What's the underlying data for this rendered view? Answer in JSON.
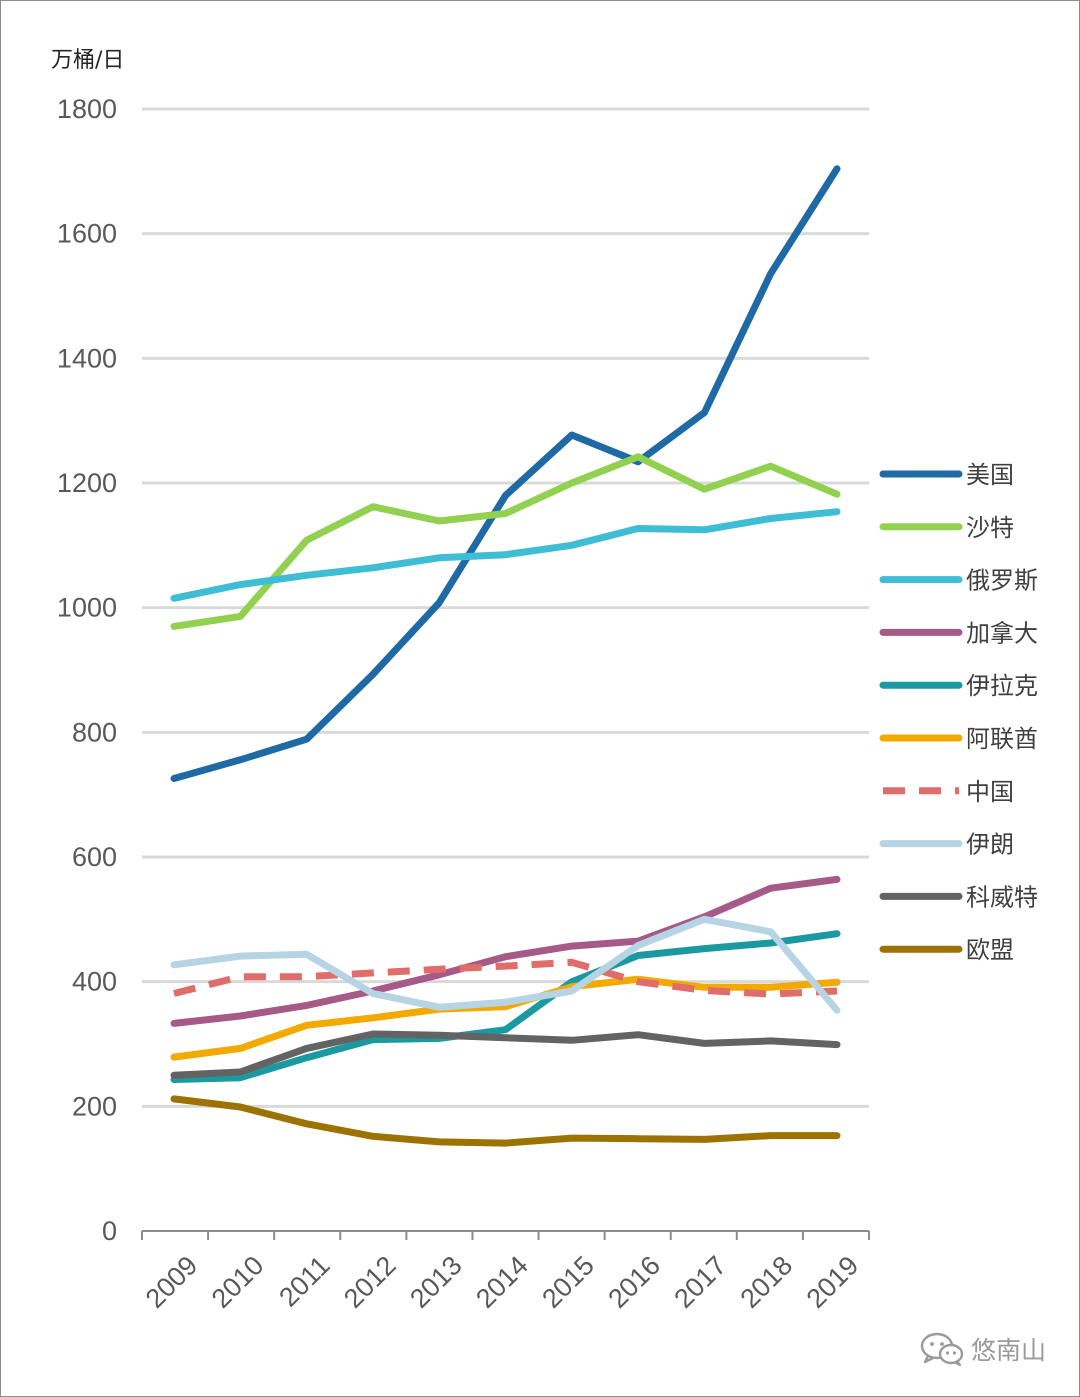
{
  "chart_data": {
    "type": "line",
    "ylabel": "万桶/日",
    "ylim": [
      0,
      1800
    ],
    "yticks": [
      0,
      200,
      400,
      600,
      800,
      1000,
      1200,
      1400,
      1600,
      1800
    ],
    "x": [
      "2009",
      "2010",
      "2011",
      "2012",
      "2013",
      "2014",
      "2015",
      "2016",
      "2017",
      "2018",
      "2019"
    ],
    "grid": true,
    "legend_position": "right",
    "series": [
      {
        "name": "美国",
        "color": "#1f6aa5",
        "dashed": false,
        "values": [
          726,
          756,
          789,
          893,
          1008,
          1180,
          1277,
          1234,
          1313,
          1536,
          1704
        ]
      },
      {
        "name": "沙特",
        "color": "#92d050",
        "dashed": false,
        "values": [
          970,
          986,
          1108,
          1162,
          1139,
          1151,
          1200,
          1242,
          1190,
          1227,
          1182
        ]
      },
      {
        "name": "俄罗斯",
        "color": "#3fbdd4",
        "dashed": false,
        "values": [
          1015,
          1037,
          1052,
          1064,
          1080,
          1085,
          1100,
          1127,
          1125,
          1143,
          1154
        ]
      },
      {
        "name": "加拿大",
        "color": "#a55a88",
        "dashed": false,
        "values": [
          333,
          345,
          362,
          385,
          411,
          440,
          457,
          465,
          504,
          550,
          564
        ]
      },
      {
        "name": "伊拉克",
        "color": "#1a9aa0",
        "dashed": false,
        "values": [
          243,
          246,
          278,
          307,
          309,
          323,
          400,
          442,
          453,
          462,
          477
        ]
      },
      {
        "name": "阿联酋",
        "color": "#f2a900",
        "dashed": false,
        "values": [
          279,
          293,
          330,
          342,
          356,
          360,
          392,
          404,
          391,
          391,
          399
        ]
      },
      {
        "name": "中国",
        "color": "#e06c6c",
        "dashed": true,
        "values": [
          381,
          408,
          408,
          414,
          420,
          425,
          431,
          400,
          386,
          380,
          385
        ]
      },
      {
        "name": "伊朗",
        "color": "#b6d4e3",
        "dashed": false,
        "values": [
          427,
          441,
          444,
          381,
          359,
          367,
          385,
          458,
          500,
          480,
          354
        ]
      },
      {
        "name": "科威特",
        "color": "#636363",
        "dashed": false,
        "values": [
          250,
          255,
          293,
          316,
          314,
          310,
          306,
          315,
          301,
          305,
          299
        ]
      },
      {
        "name": "欧盟",
        "color": "#9c7300",
        "dashed": false,
        "values": [
          212,
          199,
          172,
          152,
          143,
          141,
          149,
          148,
          147,
          153,
          153
        ]
      }
    ]
  },
  "watermark": {
    "icon": "wechat-icon",
    "text": "悠南山"
  }
}
